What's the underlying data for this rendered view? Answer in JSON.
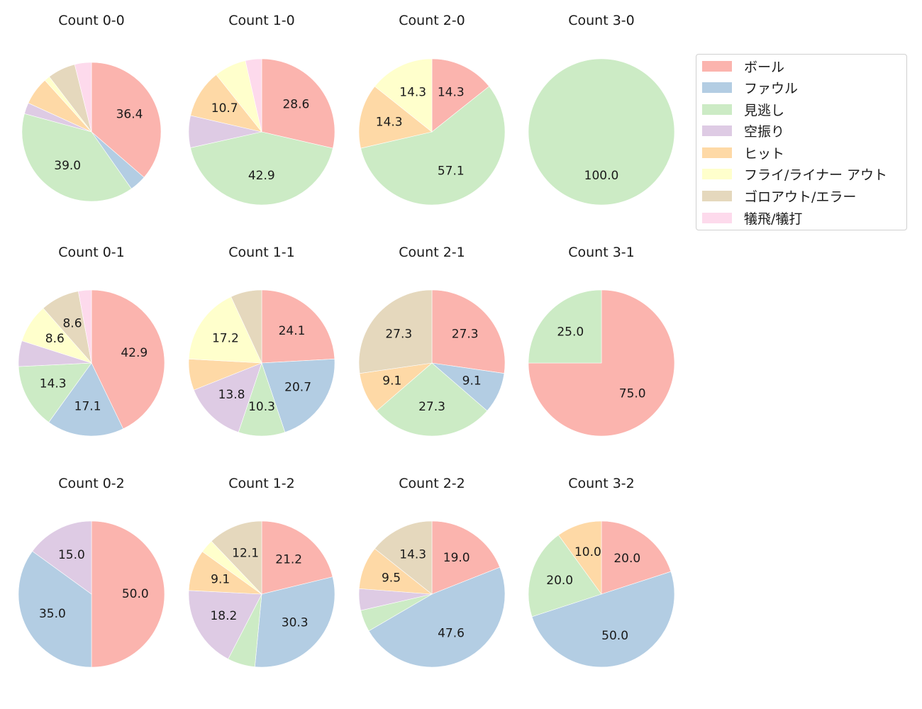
{
  "chart_data": {
    "type": "pie",
    "layout": {
      "rows": 3,
      "cols": 4,
      "legend_position": "upper right",
      "start_angle": 90,
      "direction": "clockwise",
      "label_format": "%.1f"
    },
    "categories": [
      "ボール",
      "ファウル",
      "見逃し",
      "空振り",
      "ヒット",
      "フライ/ライナー アウト",
      "ゴロアウト/エラー",
      "犠飛/犠打"
    ],
    "colors": [
      "#fbb4ae",
      "#b3cde3",
      "#ccebc5",
      "#decbe4",
      "#fed9a6",
      "#ffffcc",
      "#e5d8bd",
      "#fddaec"
    ],
    "charts": [
      {
        "title": "Count 0-0",
        "values": [
          36.4,
          3.9,
          39.0,
          2.6,
          6.5,
          1.3,
          6.5,
          3.9
        ],
        "labels_shown": [
          36.4,
          39.0
        ]
      },
      {
        "title": "Count 1-0",
        "values": [
          28.6,
          0,
          42.9,
          7.1,
          10.7,
          7.1,
          0,
          3.6
        ],
        "labels_shown": [
          28.6,
          42.9,
          10.7
        ]
      },
      {
        "title": "Count 2-0",
        "values": [
          14.3,
          0,
          57.1,
          0,
          14.3,
          14.3,
          0,
          0
        ],
        "labels_shown": [
          14.3,
          57.1,
          14.3,
          14.3
        ]
      },
      {
        "title": "Count 3-0",
        "values": [
          0,
          0,
          100.0,
          0,
          0,
          0,
          0,
          0
        ],
        "labels_shown": [
          100.0
        ]
      },
      {
        "title": "Count 0-1",
        "values": [
          42.9,
          17.1,
          14.3,
          5.7,
          0,
          8.6,
          8.6,
          2.9
        ],
        "labels_shown": [
          42.9,
          17.1,
          14.3,
          8.6,
          8.6
        ]
      },
      {
        "title": "Count 1-1",
        "values": [
          24.1,
          20.7,
          10.3,
          13.8,
          6.9,
          17.2,
          6.9,
          0
        ],
        "labels_shown": [
          24.1,
          20.7,
          10.3,
          13.8,
          17.2
        ]
      },
      {
        "title": "Count 2-1",
        "values": [
          27.3,
          9.1,
          27.3,
          0,
          9.1,
          0,
          27.3,
          0
        ],
        "labels_shown": [
          27.3,
          9.1,
          27.3,
          9.1,
          27.3
        ]
      },
      {
        "title": "Count 3-1",
        "values": [
          75.0,
          0,
          25.0,
          0,
          0,
          0,
          0,
          0
        ],
        "labels_shown": [
          75.0,
          25.0
        ]
      },
      {
        "title": "Count 0-2",
        "values": [
          50.0,
          35.0,
          0,
          15.0,
          0,
          0,
          0,
          0
        ],
        "labels_shown": [
          50.0,
          35.0,
          15.0
        ]
      },
      {
        "title": "Count 1-2",
        "values": [
          21.2,
          30.3,
          6.1,
          18.2,
          9.1,
          3.0,
          12.1,
          0
        ],
        "labels_shown": [
          21.2,
          30.3,
          18.2,
          9.1,
          12.1
        ]
      },
      {
        "title": "Count 2-2",
        "values": [
          19.0,
          47.6,
          4.8,
          4.8,
          9.5,
          0,
          14.3,
          0
        ],
        "labels_shown": [
          19.0,
          47.6,
          9.5,
          14.3
        ]
      },
      {
        "title": "Count 3-2",
        "values": [
          20.0,
          50.0,
          20.0,
          0,
          10.0,
          0,
          0,
          0
        ],
        "labels_shown": [
          20.0,
          50.0,
          20.0,
          10.0
        ]
      }
    ],
    "label_threshold": 8.0
  },
  "legend": {
    "items": [
      {
        "label": "ボール",
        "color": "#fbb4ae"
      },
      {
        "label": "ファウル",
        "color": "#b3cde3"
      },
      {
        "label": "見逃し",
        "color": "#ccebc5"
      },
      {
        "label": "空振り",
        "color": "#decbe4"
      },
      {
        "label": "ヒット",
        "color": "#fed9a6"
      },
      {
        "label": "フライ/ライナー アウト",
        "color": "#ffffcc"
      },
      {
        "label": "ゴロアウト/エラー",
        "color": "#e5d8bd"
      },
      {
        "label": "犠飛/犠打",
        "color": "#fddaec"
      }
    ]
  }
}
